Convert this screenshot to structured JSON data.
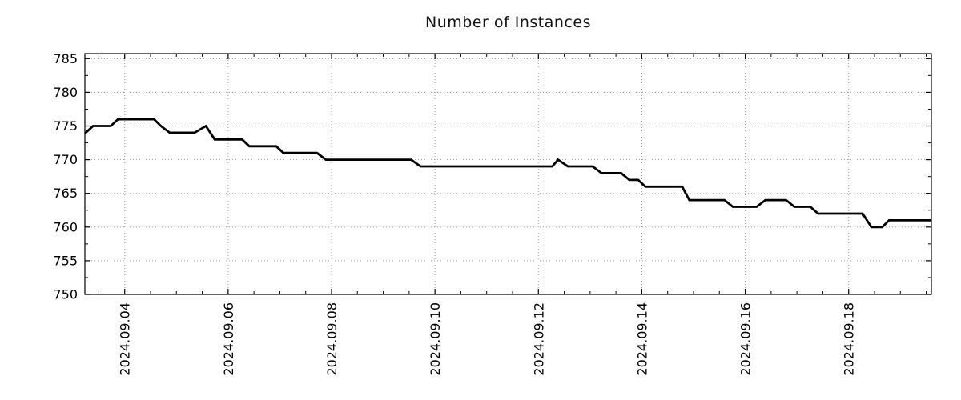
{
  "title": "Number of Instances",
  "chart_data": {
    "type": "line",
    "title": "Number of Instances",
    "xlabel": "",
    "ylabel": "",
    "legend": "none",
    "grid": "dotted",
    "line_color": "#000000",
    "grid_color": "#9a9a9a",
    "axis_color": "#000000",
    "background": "#ffffff",
    "x_unit": "days relative to 2024-09-04 00:00",
    "x_range": [
      -0.77,
      15.6
    ],
    "y_range": [
      750,
      785
    ],
    "y_ticks": [
      750,
      755,
      760,
      765,
      770,
      775,
      780,
      785
    ],
    "y_minor_step": 2.5,
    "x_minor_step": 0.5,
    "x_ticks": [
      {
        "t": 0,
        "label": "2024.09.04"
      },
      {
        "t": 2,
        "label": "2024.09.06"
      },
      {
        "t": 4,
        "label": "2024.09.08"
      },
      {
        "t": 6,
        "label": "2024.09.10"
      },
      {
        "t": 8,
        "label": "2024.09.12"
      },
      {
        "t": 10,
        "label": "2024.09.14"
      },
      {
        "t": 12,
        "label": "2024.09.16"
      },
      {
        "t": 14,
        "label": "2024.09.18"
      }
    ],
    "points": [
      [
        -0.77,
        773.9
      ],
      [
        -0.61,
        775
      ],
      [
        -0.27,
        775
      ],
      [
        -0.13,
        776
      ],
      [
        0.57,
        776
      ],
      [
        0.7,
        775
      ],
      [
        0.87,
        774
      ],
      [
        1.35,
        774
      ],
      [
        1.57,
        775
      ],
      [
        1.74,
        773
      ],
      [
        2.27,
        773
      ],
      [
        2.41,
        772
      ],
      [
        2.93,
        772
      ],
      [
        3.07,
        771
      ],
      [
        3.72,
        771
      ],
      [
        3.89,
        770
      ],
      [
        5.54,
        770
      ],
      [
        5.72,
        769
      ],
      [
        8.27,
        769
      ],
      [
        8.38,
        770
      ],
      [
        8.57,
        769
      ],
      [
        9.05,
        769
      ],
      [
        9.22,
        768
      ],
      [
        9.6,
        768
      ],
      [
        9.76,
        767
      ],
      [
        9.93,
        767
      ],
      [
        10.07,
        766
      ],
      [
        10.78,
        766
      ],
      [
        10.92,
        764
      ],
      [
        11.6,
        764
      ],
      [
        11.76,
        763
      ],
      [
        12.22,
        763
      ],
      [
        12.39,
        764
      ],
      [
        12.79,
        764
      ],
      [
        12.95,
        763
      ],
      [
        13.26,
        763
      ],
      [
        13.41,
        762
      ],
      [
        14.27,
        762
      ],
      [
        14.44,
        760
      ],
      [
        14.65,
        760
      ],
      [
        14.78,
        761
      ],
      [
        15.6,
        761
      ]
    ]
  }
}
